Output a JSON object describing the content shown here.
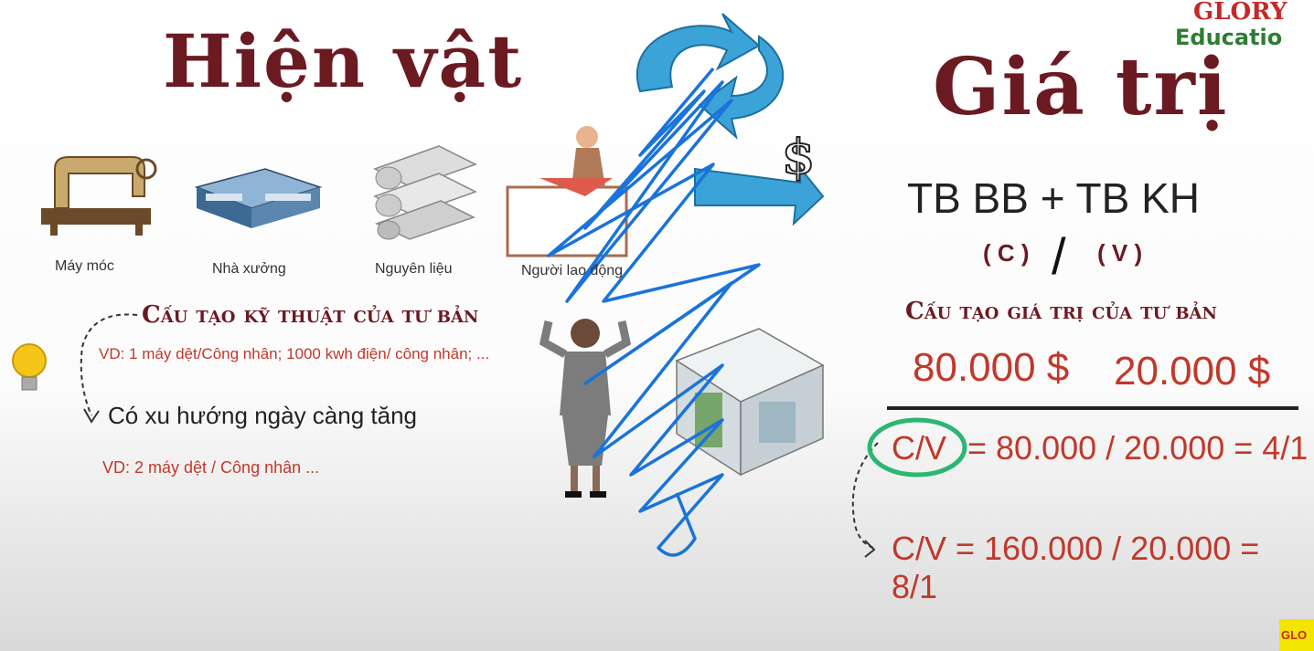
{
  "brand": {
    "line1": "GLORY",
    "line2": "Educatio",
    "badge": "GLO",
    "color1": "#c62828",
    "color2": "#2e7d32"
  },
  "left": {
    "title": "Hiện vật",
    "items": [
      {
        "label": "Máy móc",
        "icon": "sewing-machine-icon"
      },
      {
        "label": "Nhà xưởng",
        "icon": "factory-icon"
      },
      {
        "label": "Nguyên liệu",
        "icon": "fabric-rolls-icon"
      },
      {
        "label": "Người lao động",
        "icon": "worker-icon"
      }
    ],
    "subtitle": "Cấu tạo kỹ thuật của tư bản",
    "example1": "VD: 1 máy dệt/Công nhân; 1000 kwh điện/ công nhân; ...",
    "trend": "Có xu hướng ngày càng tăng",
    "example2": "VD: 2 máy dệt / Công nhân ..."
  },
  "right": {
    "title": "Giá trị",
    "formula": "TB BB + TB KH",
    "c_label": "( C )",
    "slash": "/",
    "v_label": "( V )",
    "subtitle": "Cấu tạo giá trị của tư bản",
    "c_value": "80.000 $",
    "v_value": "20.000 $",
    "cv_label": "C/V",
    "eq1": "= 80.000 / 20.000 = 4/1",
    "eq2": "C/V = 160.000 / 20.000 = 8/1",
    "dollar": "$"
  },
  "colors": {
    "accent": "#6b1a22",
    "red": "#c0392b",
    "arrow": "#3ba3d8",
    "scribble": "#1a73d9",
    "circle": "#2bb673"
  }
}
